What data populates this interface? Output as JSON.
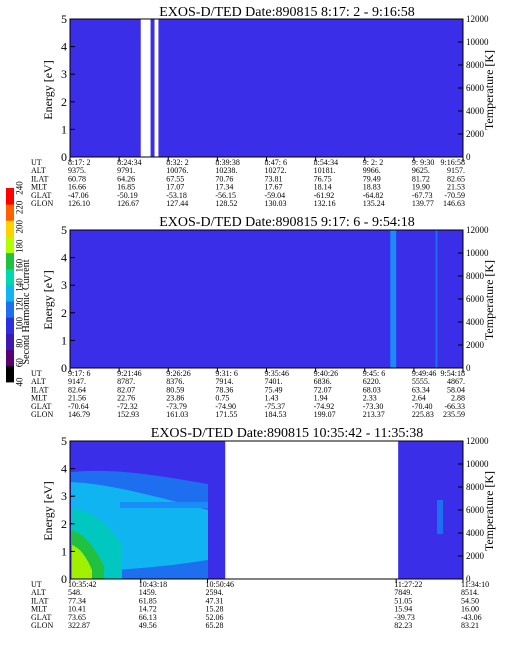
{
  "colorbar": {
    "label": "Second Harmonic Current",
    "ticks": [
      "40",
      "60",
      "80",
      "100",
      "120",
      "140",
      "160",
      "180",
      "200",
      "220",
      "240"
    ],
    "colors": [
      "#000000",
      "#5a0070",
      "#3c1ab0",
      "#2e2ee0",
      "#1e6ef0",
      "#10b4f0",
      "#00d8b0",
      "#20c040",
      "#b0ff00",
      "#ffd200",
      "#ff6000",
      "#ff0000"
    ]
  },
  "chart_data": [
    {
      "type": "heatmap",
      "title": "EXOS-D/TED   Date:890815  8:17: 2 - 9:16:58",
      "ylabel": "Energy [eV]",
      "y2label": "Temperature [K]",
      "yticks": [
        "0",
        "1",
        "2",
        "3",
        "4",
        "5"
      ],
      "y2ticks": [
        "0",
        "2000",
        "4000",
        "6000",
        "8000",
        "10000",
        "12000"
      ],
      "ylim": [
        0,
        5
      ],
      "y2lim": [
        0,
        12000
      ],
      "background_color": "#3a2ee8",
      "gaps": [
        [
          0.18,
          0.205
        ],
        [
          0.215,
          0.225
        ]
      ],
      "streaks": [],
      "table": {
        "labels": [
          "UT",
          "ALT",
          "ILAT",
          "MLT",
          "GLAT",
          "GLON"
        ],
        "columns": [
          [
            "8:17: 2",
            "9375.",
            "60.78",
            "16.66",
            "-47.06",
            "126.10"
          ],
          [
            "8:24:34",
            "9791.",
            "64.26",
            "16.85",
            "-50.19",
            "126.67"
          ],
          [
            "8:32: 2",
            "10076.",
            "67.55",
            "17.07",
            "-53.18",
            "127.44"
          ],
          [
            "8:39:38",
            "10238.",
            "70.76",
            "17.34",
            "-56.15",
            "128.52"
          ],
          [
            "8:47: 6",
            "10272.",
            "73.81",
            "17.67",
            "-59.04",
            "130.03"
          ],
          [
            "8:54:34",
            "10181.",
            "76.75",
            "18.14",
            "-61.92",
            "132.16"
          ],
          [
            "9: 2: 2",
            "9966.",
            "79.49",
            "18.83",
            "-64.82",
            "135.24"
          ],
          [
            "9: 9:30",
            "9625.",
            "81.72",
            "19.90",
            "-67.73",
            "139.77"
          ],
          [
            "9:16:58",
            "9157.",
            "82.65",
            "21.53",
            "-70.59",
            "146.63"
          ]
        ]
      }
    },
    {
      "type": "heatmap",
      "title": "EXOS-D/TED   Date:890815  9:17: 6 - 9:54:18",
      "ylabel": "Energy [eV]",
      "y2label": "Temperature [K]",
      "yticks": [
        "0",
        "1",
        "2",
        "3",
        "4",
        "5"
      ],
      "y2ticks": [
        "0",
        "2000",
        "4000",
        "6000",
        "8000",
        "10000",
        "12000"
      ],
      "ylim": [
        0,
        5
      ],
      "y2lim": [
        0,
        12000
      ],
      "background_color": "#3a2ee8",
      "gaps": [],
      "streaks": [
        [
          0.815,
          0.83,
          "#1a8cf8"
        ],
        [
          0.93,
          0.935,
          "#1e6ef0"
        ]
      ],
      "table": {
        "labels": [
          "UT",
          "ALT",
          "ILAT",
          "MLT",
          "GLAT",
          "GLON"
        ],
        "columns": [
          [
            "9:17: 6",
            "9147.",
            "82.64",
            "21.56",
            "-70.64",
            "146.79"
          ],
          [
            "9:21:46",
            "8787.",
            "82.07",
            "22.76",
            "-72.32",
            "152.93"
          ],
          [
            "9:26:26",
            "8376.",
            "80.59",
            "23.86",
            "-73.79",
            "161.03"
          ],
          [
            "9:31: 6",
            "7914.",
            "78.36",
            "0.75",
            "-74.90",
            "171.55"
          ],
          [
            "9:35:46",
            "7401.",
            "75.49",
            "1.43",
            "-75.37",
            "184.53"
          ],
          [
            "9:40:26",
            "6836.",
            "72.07",
            "1.94",
            "-74.92",
            "199.07"
          ],
          [
            "9:45: 6",
            "6220.",
            "68.03",
            "2.33",
            "-73.30",
            "213.37"
          ],
          [
            "9:49:46",
            "5555.",
            "63.34",
            "2.64",
            "-70.40",
            "225.83"
          ],
          [
            "9:54:18",
            "4867.",
            "58.04",
            "2.88",
            "-66.33",
            "235.59"
          ]
        ]
      }
    },
    {
      "type": "heatmap",
      "title": "EXOS-D/TED   Date:890815  10:35:42 - 11:35:38",
      "ylabel": "Energy [eV]",
      "y2label": "Temperature [K]",
      "yticks": [
        "0",
        "1",
        "2",
        "3",
        "4",
        "5"
      ],
      "y2ticks": [
        "0",
        "2000",
        "4000",
        "6000",
        "8000",
        "10000",
        "12000"
      ],
      "ylim": [
        0,
        5
      ],
      "y2lim": [
        0,
        12000
      ],
      "background_color": "#3a2ee8",
      "gaps": [
        [
          0.395,
          0.835
        ]
      ],
      "streaks": [],
      "table": {
        "labels": [
          "UT",
          "ALT",
          "ILAT",
          "MLT",
          "GLAT",
          "GLON"
        ],
        "columns": [
          [
            "10:35:42",
            "548.",
            "77.34",
            "10.41",
            "73.65",
            "322.87"
          ],
          [
            "10:43:18",
            "1459.",
            "61.85",
            "14.72",
            "66.13",
            "49.56"
          ],
          [
            "10:50:46",
            "2594.",
            "47.31",
            "15.28",
            "52.06",
            "65.28"
          ],
          [
            "11:27:22",
            "7849.",
            "51.05",
            "15.94",
            "-39.73",
            "82.23"
          ],
          [
            "11:34:10",
            "8514.",
            "54.50",
            "16.00",
            "-43.06",
            "83.21"
          ]
        ]
      }
    }
  ]
}
